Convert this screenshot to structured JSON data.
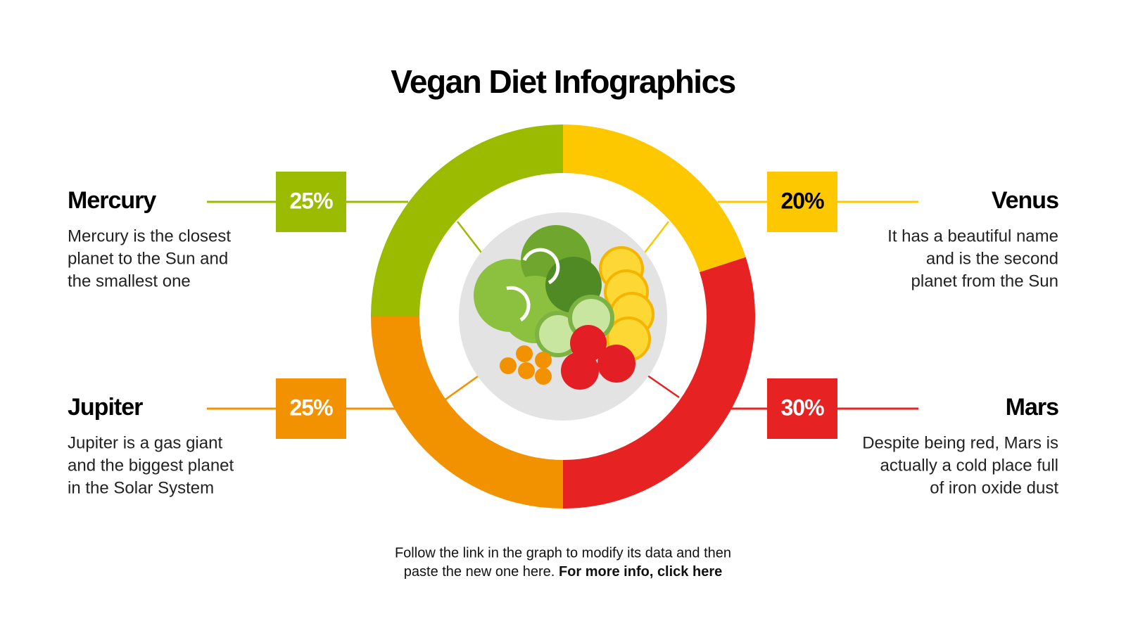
{
  "chart_data": {
    "type": "donut",
    "title": "Vegan Diet Infographics",
    "categories": [
      "Venus",
      "Mars",
      "Jupiter",
      "Mercury"
    ],
    "values": [
      20,
      30,
      25,
      25
    ],
    "value_labels": [
      "20%",
      "30%",
      "25%",
      "25%"
    ],
    "colors": [
      "#fdc800",
      "#e62222",
      "#f39200",
      "#9bbb00"
    ],
    "label_colors": [
      "#000000",
      "#ffffff",
      "#ffffff",
      "#ffffff"
    ],
    "descriptions": [
      [
        "It has a beautiful name",
        "and is the second",
        "planet from the Sun"
      ],
      [
        "Despite being red, Mars is",
        "actually a cold place full",
        "of iron oxide dust"
      ],
      [
        "Jupiter is a gas giant",
        "and the biggest planet",
        "in the Solar System"
      ],
      [
        "Mercury is the closest",
        "planet to the Sun and",
        "the smallest one"
      ]
    ]
  },
  "footer": {
    "lines": [
      "Follow the link in the graph to modify its data and then",
      "paste the new one here."
    ],
    "link": "For more info, click here"
  }
}
